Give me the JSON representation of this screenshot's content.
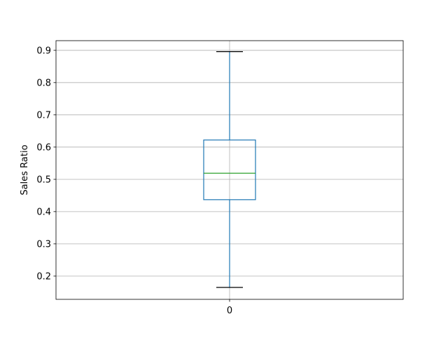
{
  "chart_data": {
    "type": "box",
    "categories": [
      "0"
    ],
    "boxes": [
      {
        "label": "0",
        "whisker_low": 0.165,
        "q1": 0.437,
        "median": 0.519,
        "q3": 0.622,
        "whisker_high": 0.896
      }
    ],
    "ylabel": "Sales Ratio",
    "xlabel": "",
    "ylim": [
      0.128,
      0.93
    ],
    "yticks": [
      0.2,
      0.3,
      0.4,
      0.5,
      0.6,
      0.7,
      0.8,
      0.9
    ],
    "ytick_labels": [
      "0.2",
      "0.3",
      "0.4",
      "0.5",
      "0.6",
      "0.7",
      "0.8",
      "0.9"
    ],
    "grid": true,
    "colors": {
      "box": "#1f77b4",
      "median": "#2ca02c",
      "caps": "#000000",
      "grid": "#b0b0b0"
    }
  }
}
